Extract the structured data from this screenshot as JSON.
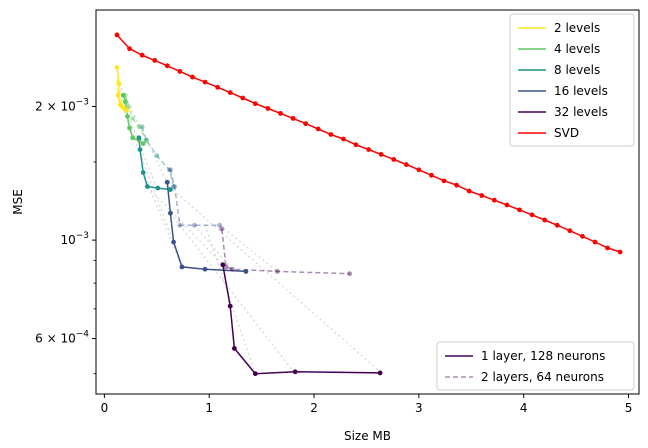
{
  "chart_data": {
    "type": "line",
    "title": "",
    "xlabel": "Size MB",
    "ylabel": "MSE",
    "xlim": [
      -0.08,
      5.1
    ],
    "ylim": [
      0.00045,
      0.0033
    ],
    "yscale": "log",
    "grid": false,
    "x_ticks": [
      {
        "value": 0,
        "label": "0"
      },
      {
        "value": 1,
        "label": "1"
      },
      {
        "value": 2,
        "label": "2"
      },
      {
        "value": 3,
        "label": "3"
      },
      {
        "value": 4,
        "label": "4"
      },
      {
        "value": 5,
        "label": "5"
      }
    ],
    "y_ticks": [
      {
        "value": 0.002,
        "base": "2 × 10",
        "exp": "−3"
      },
      {
        "value": 0.001,
        "base": "10",
        "exp": "−3"
      },
      {
        "value": 0.0006,
        "base": "6 × 10",
        "exp": "−4"
      }
    ],
    "y_minor_ticks": [
      0.0005,
      0.0007,
      0.0008,
      0.0009,
      0.0015
    ],
    "legend_top": {
      "placement": "top-right",
      "entries": [
        {
          "label": "2 levels",
          "color": "#fde725"
        },
        {
          "label": "4 levels",
          "color": "#5ec962"
        },
        {
          "label": "8 levels",
          "color": "#21918c"
        },
        {
          "label": "16 levels",
          "color": "#3b528b"
        },
        {
          "label": "32 levels",
          "color": "#440154"
        },
        {
          "label": "SVD",
          "color": "#ff0000"
        }
      ]
    },
    "legend_bottom": {
      "placement": "bottom-right",
      "entries": [
        {
          "label": "1 layer, 128 neurons",
          "color": "#440154",
          "dash": "solid"
        },
        {
          "label": "2 layers, 64 neurons",
          "color": "#440154",
          "dash": "dashed"
        }
      ]
    },
    "series": [
      {
        "name": "SVD",
        "color": "#ff0000",
        "style": "solid",
        "marker": true,
        "x": [
          0.12,
          0.24,
          0.36,
          0.48,
          0.6,
          0.72,
          0.84,
          0.96,
          1.08,
          1.2,
          1.32,
          1.44,
          1.56,
          1.68,
          1.8,
          1.92,
          2.04,
          2.16,
          2.28,
          2.4,
          2.52,
          2.64,
          2.76,
          2.88,
          3.0,
          3.12,
          3.24,
          3.36,
          3.48,
          3.6,
          3.72,
          3.84,
          3.96,
          4.08,
          4.2,
          4.32,
          4.44,
          4.56,
          4.68,
          4.8,
          4.92
        ],
        "y": [
          0.0029,
          0.0027,
          0.00261,
          0.00254,
          0.00247,
          0.0024,
          0.00233,
          0.00227,
          0.00221,
          0.00215,
          0.00209,
          0.00203,
          0.00198,
          0.00193,
          0.00188,
          0.00183,
          0.00178,
          0.00173,
          0.00169,
          0.00164,
          0.0016,
          0.00156,
          0.00152,
          0.00148,
          0.00144,
          0.0014,
          0.00136,
          0.00133,
          0.00129,
          0.00126,
          0.00123,
          0.0012,
          0.00117,
          0.00114,
          0.00111,
          0.00108,
          0.00105,
          0.00102,
          0.00099,
          0.00096,
          0.00094
        ]
      },
      {
        "name": "",
        "color": "#fde725",
        "style": "solid",
        "marker": true,
        "x": [
          0.12,
          0.14,
          0.13,
          0.15,
          0.17,
          0.19,
          0.21
        ],
        "y": [
          0.00245,
          0.00225,
          0.00212,
          0.00202,
          0.002,
          0.00198,
          0.00196
        ]
      },
      {
        "name": "",
        "color": "#5ec962",
        "style": "solid",
        "marker": true,
        "x": [
          0.18,
          0.2,
          0.22,
          0.24,
          0.27,
          0.33,
          0.37
        ],
        "y": [
          0.00212,
          0.00205,
          0.0019,
          0.00179,
          0.0017,
          0.00168,
          0.00165
        ]
      },
      {
        "name": "",
        "color": "#21918c",
        "style": "solid",
        "marker": true,
        "x": [
          0.33,
          0.34,
          0.37,
          0.41,
          0.51,
          0.63
        ],
        "y": [
          0.0017,
          0.0016,
          0.00142,
          0.00132,
          0.00131,
          0.0013
        ]
      },
      {
        "name": "",
        "color": "#3b528b",
        "style": "solid",
        "marker": true,
        "x": [
          0.6,
          0.63,
          0.66,
          0.74,
          0.96,
          1.35
        ],
        "y": [
          0.00135,
          0.00115,
          0.00099,
          0.00087,
          0.00086,
          0.00085
        ]
      },
      {
        "name": "",
        "color": "#440154",
        "style": "solid",
        "marker": true,
        "x": [
          1.13,
          1.2,
          1.24,
          1.44,
          1.82,
          2.63
        ],
        "y": [
          0.00088,
          0.00071,
          0.00057,
          0.0005,
          0.000505,
          0.000502
        ]
      },
      {
        "name": "",
        "color": "#fde725",
        "style": "dashed",
        "marker": true,
        "alpha": 0.45,
        "x": [
          0.13,
          0.14,
          0.16,
          0.18,
          0.22
        ],
        "y": [
          0.00228,
          0.00215,
          0.00205,
          0.002,
          0.00197
        ]
      },
      {
        "name": "",
        "color": "#5ec962",
        "style": "dashed",
        "marker": true,
        "alpha": 0.45,
        "x": [
          0.2,
          0.23,
          0.27,
          0.33,
          0.4
        ],
        "y": [
          0.00212,
          0.002,
          0.00188,
          0.0018,
          0.00168
        ]
      },
      {
        "name": "",
        "color": "#21918c",
        "style": "dashed",
        "marker": true,
        "alpha": 0.45,
        "x": [
          0.36,
          0.4,
          0.5,
          0.62,
          0.66
        ],
        "y": [
          0.0018,
          0.00168,
          0.00155,
          0.00144,
          0.00132
        ]
      },
      {
        "name": "",
        "color": "#3b528b",
        "style": "dashed",
        "marker": true,
        "alpha": 0.45,
        "x": [
          0.63,
          0.67,
          0.72,
          0.86,
          1.1
        ],
        "y": [
          0.00144,
          0.00132,
          0.00108,
          0.00108,
          0.00108
        ]
      },
      {
        "name": "",
        "color": "#440154",
        "style": "dashed",
        "marker": true,
        "alpha": 0.45,
        "x": [
          1.12,
          1.16,
          1.22,
          1.65,
          2.34
        ],
        "y": [
          0.00106,
          0.00087,
          0.00086,
          0.00085,
          0.00084
        ]
      }
    ],
    "connectors": [
      {
        "x": [
          0.14,
          0.62
        ],
        "y": [
          0.00225,
          0.00132
        ]
      },
      {
        "x": [
          0.17,
          0.66
        ],
        "y": [
          0.002,
          0.00099
        ]
      },
      {
        "x": [
          0.23,
          0.5
        ],
        "y": [
          0.0019,
          0.00131
        ]
      },
      {
        "x": [
          0.37,
          0.74
        ],
        "y": [
          0.00142,
          0.00087
        ]
      },
      {
        "x": [
          0.41,
          1.13
        ],
        "y": [
          0.00132,
          0.00088
        ]
      },
      {
        "x": [
          0.63,
          1.82
        ],
        "y": [
          0.00115,
          0.0005
        ]
      },
      {
        "x": [
          0.86,
          1.22
        ],
        "y": [
          0.00108,
          0.00086
        ]
      },
      {
        "x": [
          0.62,
          2.63
        ],
        "y": [
          0.00132,
          0.000505
        ]
      },
      {
        "x": [
          0.96,
          1.44
        ],
        "y": [
          0.00108,
          0.0005
        ]
      },
      {
        "x": [
          1.1,
          1.65
        ],
        "y": [
          0.00108,
          0.00085
        ]
      }
    ]
  }
}
